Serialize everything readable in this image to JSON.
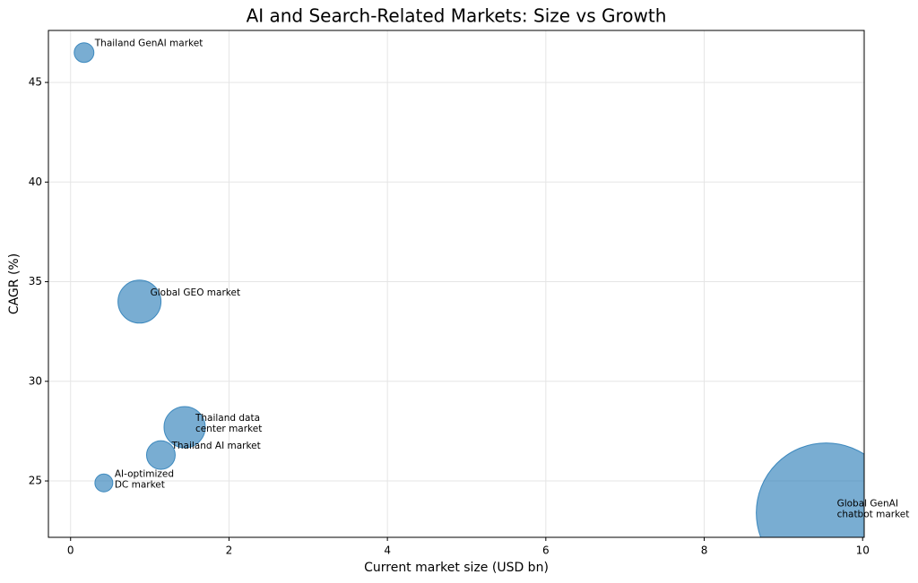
{
  "chart_data": {
    "type": "bubble",
    "title": "AI and Search-Related Markets: Size vs Growth",
    "x_label": "Current market size (USD bn)",
    "y_label": "CAGR (%)",
    "labels": [
      [
        "Thailand GenAI market"
      ],
      [
        "Global GEO market"
      ],
      [
        "Thailand data",
        "center market"
      ],
      [
        "Thailand AI market"
      ],
      [
        "AI-optimized",
        "DC market"
      ],
      [
        "Global GenAI",
        "chatbot market"
      ]
    ],
    "x": [
      0.17,
      0.87,
      1.44,
      1.14,
      0.42,
      9.54
    ],
    "y": [
      46.5,
      34.0,
      27.7,
      26.3,
      24.9,
      23.4
    ],
    "sizes": [
      121,
      576,
      529,
      256,
      100,
      6084
    ],
    "color": "#1f77b4",
    "xlim": [
      -0.28,
      10.02
    ],
    "ylim": [
      22.17,
      47.61
    ],
    "xticks": [
      0,
      2,
      4,
      6,
      8,
      10
    ],
    "yticks": [
      25,
      30,
      35,
      40,
      45
    ],
    "grid": true
  }
}
